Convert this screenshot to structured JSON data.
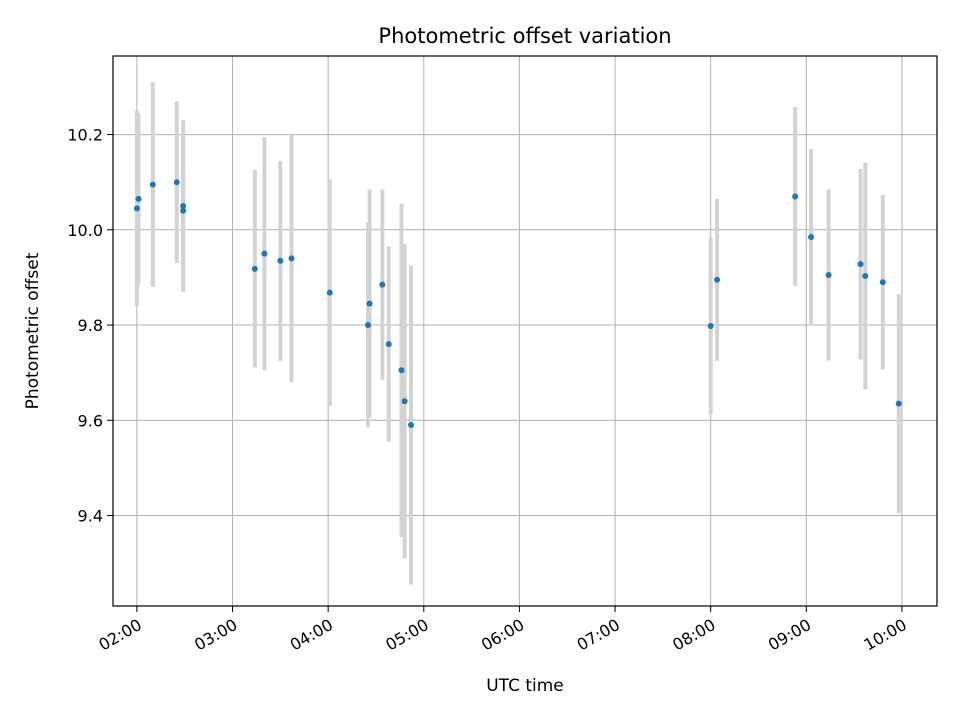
{
  "chart_data": {
    "type": "scatter",
    "title": "Photometric offset variation",
    "xlabel": "UTC time",
    "ylabel": "Photometric offset",
    "x_axis_type": "time",
    "xlim": [
      "01:45",
      "10:22"
    ],
    "ylim": [
      9.21,
      10.365
    ],
    "x_ticks": [
      "02:00",
      "03:00",
      "04:00",
      "05:00",
      "06:00",
      "07:00",
      "08:00",
      "09:00",
      "10:00"
    ],
    "y_ticks": [
      9.4,
      9.6,
      9.8,
      10.0,
      10.2
    ],
    "y_tick_labels": [
      "9.4",
      "9.6",
      "9.8",
      "10.0",
      "10.2"
    ],
    "grid": true,
    "series": [
      {
        "marker_color": "#1f77b4",
        "errorbar_color": "#d3d3d3",
        "points": [
          {
            "x": "02:00",
            "y": 10.045,
            "yerr": 0.205
          },
          {
            "x": "02:01",
            "y": 10.065,
            "yerr": 0.18
          },
          {
            "x": "02:10",
            "y": 10.095,
            "yerr": 0.215
          },
          {
            "x": "02:25",
            "y": 10.1,
            "yerr": 0.17
          },
          {
            "x": "02:29",
            "y": 10.05,
            "yerr": 0.18
          },
          {
            "x": "02:29",
            "y": 10.04,
            "yerr": 0.17
          },
          {
            "x": "03:14",
            "y": 9.918,
            "yerr": 0.207
          },
          {
            "x": "03:20",
            "y": 9.95,
            "yerr": 0.245
          },
          {
            "x": "03:30",
            "y": 9.935,
            "yerr": 0.21
          },
          {
            "x": "03:37",
            "y": 9.94,
            "yerr": 0.26
          },
          {
            "x": "04:01",
            "y": 9.868,
            "yerr": 0.238
          },
          {
            "x": "04:25",
            "y": 9.8,
            "yerr": 0.215
          },
          {
            "x": "04:26",
            "y": 9.845,
            "yerr": 0.24
          },
          {
            "x": "04:34",
            "y": 9.885,
            "yerr": 0.2
          },
          {
            "x": "04:38",
            "y": 9.76,
            "yerr": 0.205
          },
          {
            "x": "04:46",
            "y": 9.705,
            "yerr": 0.35
          },
          {
            "x": "04:48",
            "y": 9.64,
            "yerr": 0.33
          },
          {
            "x": "04:52",
            "y": 9.59,
            "yerr": 0.335
          },
          {
            "x": "08:00",
            "y": 9.798,
            "yerr": 0.185
          },
          {
            "x": "08:04",
            "y": 9.895,
            "yerr": 0.17
          },
          {
            "x": "08:53",
            "y": 10.07,
            "yerr": 0.188
          },
          {
            "x": "09:03",
            "y": 9.985,
            "yerr": 0.185
          },
          {
            "x": "09:14",
            "y": 9.905,
            "yerr": 0.18
          },
          {
            "x": "09:34",
            "y": 9.928,
            "yerr": 0.2
          },
          {
            "x": "09:37",
            "y": 9.903,
            "yerr": 0.238
          },
          {
            "x": "09:48",
            "y": 9.89,
            "yerr": 0.183
          },
          {
            "x": "09:58",
            "y": 9.635,
            "yerr": 0.23
          }
        ]
      }
    ]
  }
}
